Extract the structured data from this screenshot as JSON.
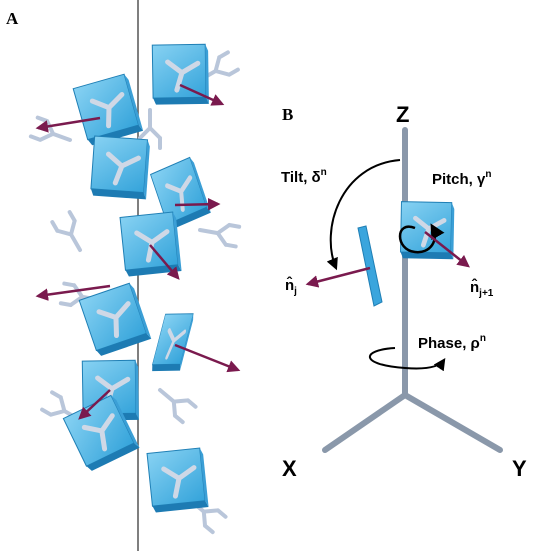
{
  "panel_a": {
    "label": "A"
  },
  "panel_b": {
    "label": "B",
    "axes": {
      "z": "Z",
      "x": "X",
      "y": "Y"
    },
    "tilt": {
      "text": "Tilt, δ",
      "superscript": "n"
    },
    "pitch": {
      "text": "Pitch, γ",
      "superscript": "n"
    },
    "phase": {
      "text": "Phase, ρ",
      "superscript": "n"
    },
    "normal_j": {
      "text": "n̂",
      "subscript": "j"
    },
    "normal_j1": {
      "text": "n̂",
      "subscript": "j+1"
    }
  }
}
